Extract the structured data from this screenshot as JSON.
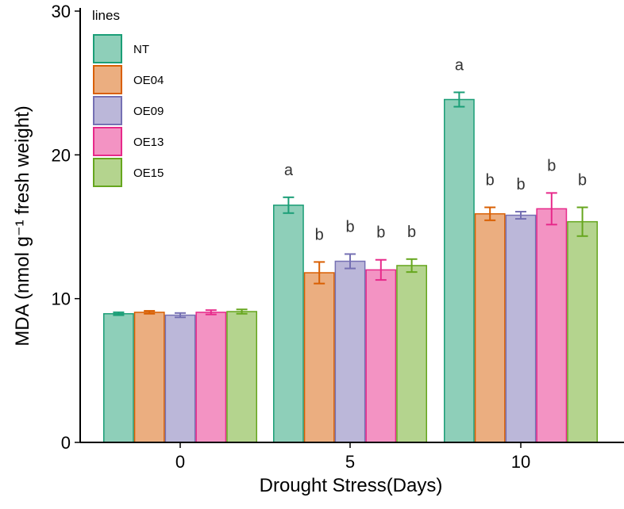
{
  "chart_data": {
    "type": "bar",
    "title": "",
    "xlabel": "Drought Stress(Days)",
    "ylabel": "MDA (nmol g⁻¹ fresh weight)",
    "ylim": [
      0,
      30
    ],
    "yticks": [
      0,
      10,
      20,
      30
    ],
    "categories": [
      "0",
      "5",
      "10"
    ],
    "legend": {
      "title": "lines",
      "position": "top-left"
    },
    "series": [
      {
        "name": "NT",
        "fill": "#8ecfb9",
        "stroke": "#1b9e77",
        "values": [
          8.95,
          16.5,
          23.85
        ],
        "errors": [
          0.1,
          0.55,
          0.5
        ],
        "labels": [
          "",
          "a",
          "a"
        ]
      },
      {
        "name": "OE04",
        "fill": "#ebae80",
        "stroke": "#d95f02",
        "values": [
          9.05,
          11.8,
          15.9
        ],
        "errors": [
          0.1,
          0.75,
          0.45
        ],
        "labels": [
          "",
          "b",
          "b"
        ]
      },
      {
        "name": "OE09",
        "fill": "#bbb7d9",
        "stroke": "#7570b3",
        "values": [
          8.85,
          12.6,
          15.8
        ],
        "errors": [
          0.15,
          0.5,
          0.25
        ],
        "labels": [
          "",
          "b",
          "b"
        ]
      },
      {
        "name": "OE13",
        "fill": "#f393c3",
        "stroke": "#e7298a",
        "values": [
          9.05,
          12.0,
          16.25
        ],
        "errors": [
          0.15,
          0.7,
          1.1
        ],
        "labels": [
          "",
          "b",
          "b"
        ]
      },
      {
        "name": "OE15",
        "fill": "#b4d48e",
        "stroke": "#66a61e",
        "values": [
          9.1,
          12.3,
          15.35
        ],
        "errors": [
          0.15,
          0.45,
          1.0
        ],
        "labels": [
          "",
          "b",
          "b"
        ]
      }
    ]
  }
}
